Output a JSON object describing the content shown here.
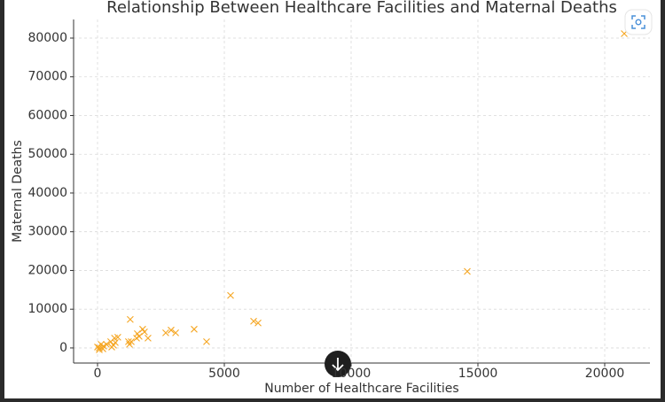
{
  "chart_data": {
    "type": "scatter",
    "title": "Relationship Between Healthcare Facilities and Maternal Deaths",
    "x_label": "Number of Healthcare Facilities",
    "y_label": "Maternal Deaths",
    "color": "#f5a623",
    "grid": true,
    "xlim": [
      -944,
      21783
    ],
    "xticks": [
      0,
      5000,
      10000,
      15000,
      20000
    ],
    "ylim": [
      -3900,
      84800
    ],
    "yticks": [
      0,
      10000,
      20000,
      30000,
      40000,
      50000,
      60000,
      70000,
      80000
    ],
    "x": [
      20770,
      14580,
      5245,
      6155,
      6330,
      4300,
      3810,
      3080,
      2900,
      2690,
      1990,
      1780,
      1850,
      1640,
      1570,
      1540,
      1290,
      1330,
      1220,
      1260,
      800,
      670,
      700,
      630,
      560,
      520,
      240,
      140,
      70,
      0,
      350,
      70,
      210
    ],
    "values": [
      81150,
      19770,
      13560,
      6900,
      6440,
      1610,
      4830,
      3910,
      4600,
      3910,
      2530,
      4830,
      4140,
      2990,
      3680,
      2530,
      7360,
      1610,
      1610,
      920,
      2760,
      2530,
      1380,
      690,
      230,
      1610,
      460,
      920,
      0,
      230,
      920,
      -460,
      -230
    ]
  }
}
